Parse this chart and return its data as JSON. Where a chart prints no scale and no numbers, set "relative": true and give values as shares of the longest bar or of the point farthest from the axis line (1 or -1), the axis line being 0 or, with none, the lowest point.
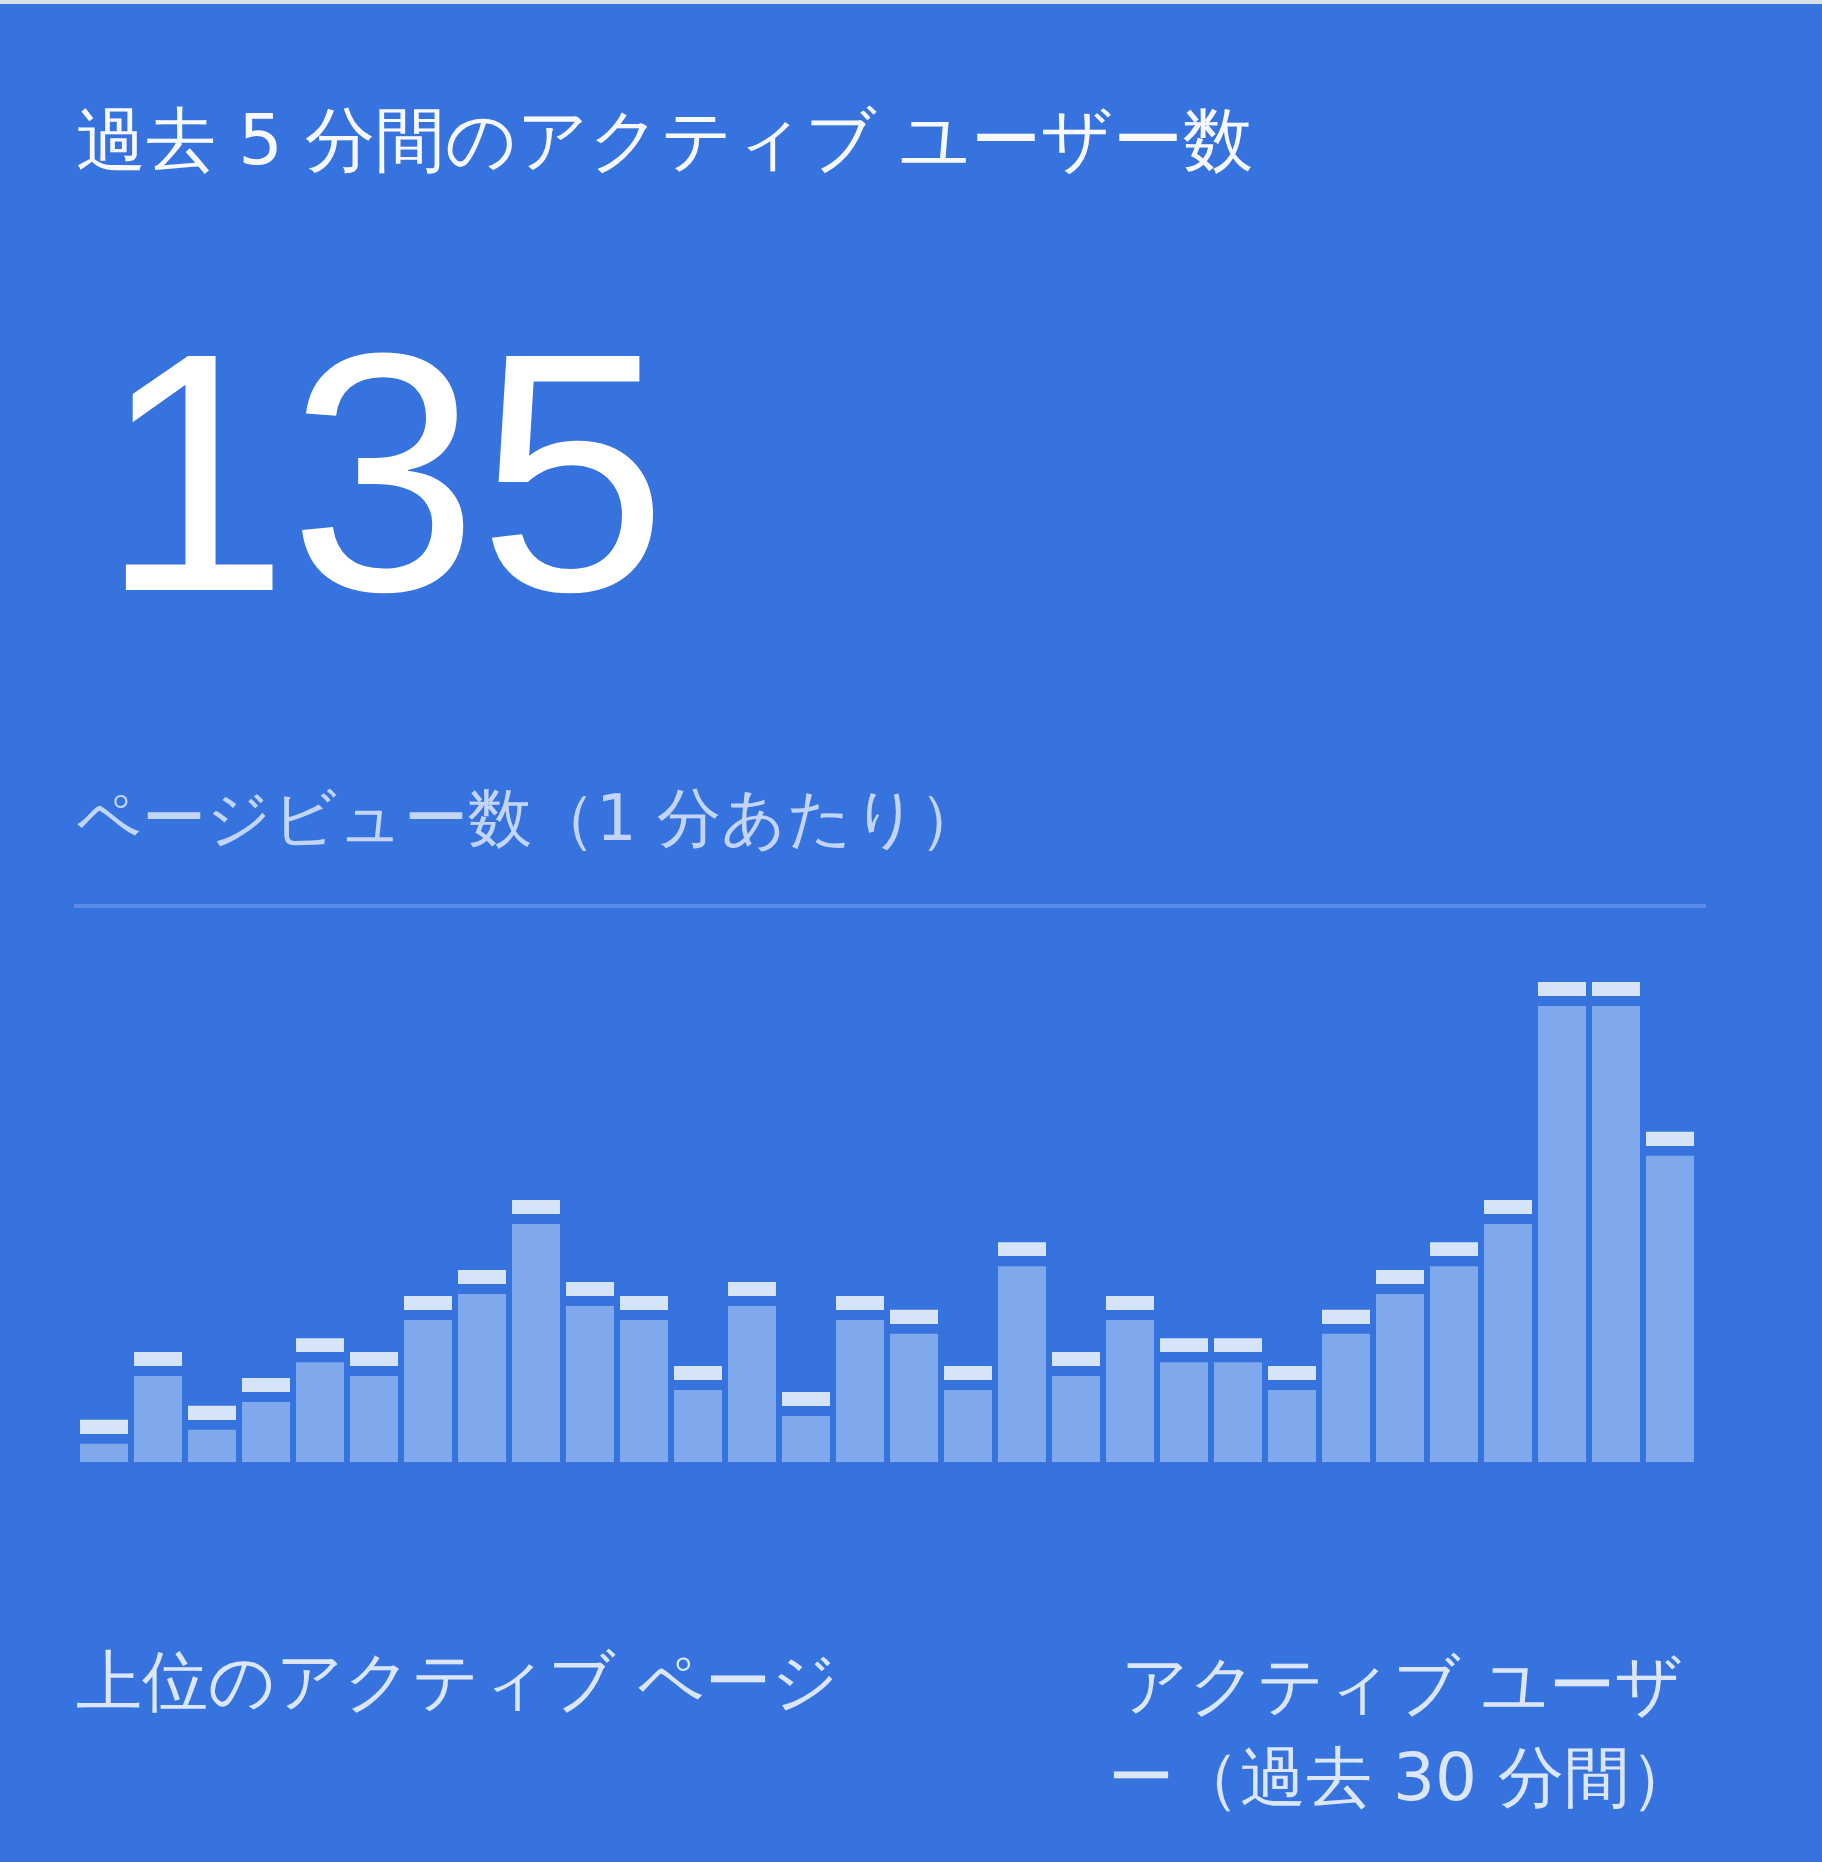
{
  "chart_data": {
    "type": "bar",
    "title": "過去 5 分間のアクティブ ユーザー数",
    "subtitle": "ページビュー数（1 分あたり）",
    "annotations": [
      "135",
      "上位のアクティブ ページ",
      "アクティブ ユーザー（過去 30 分間）"
    ],
    "relative": true,
    "stacked": true,
    "categories": [
      null,
      null,
      null,
      null,
      null,
      null,
      null,
      null,
      null,
      null,
      null,
      null,
      null,
      null,
      null,
      null,
      null,
      null,
      null,
      null,
      null,
      null,
      null,
      null,
      null,
      null,
      null,
      null,
      null,
      null
    ],
    "series": [
      {
        "color": "#80a8ec",
        "values": [
          0.038,
          0.179,
          0.067,
          0.125,
          0.208,
          0.179,
          0.296,
          0.35,
          0.496,
          0.325,
          0.296,
          0.15,
          0.325,
          0.096,
          0.296,
          0.267,
          0.15,
          0.408,
          0.179,
          0.296,
          0.208,
          0.208,
          0.15,
          0.267,
          0.35,
          0.408,
          0.496,
          0.95,
          0.95,
          0.638
        ]
      },
      {
        "color": "#d6e4f8",
        "values": [
          0.05,
          0.05,
          0.05,
          0.05,
          0.05,
          0.05,
          0.05,
          0.05,
          0.05,
          0.05,
          0.05,
          0.05,
          0.05,
          0.05,
          0.05,
          0.05,
          0.05,
          0.05,
          0.05,
          0.05,
          0.05,
          0.05,
          0.05,
          0.05,
          0.05,
          0.05,
          0.05,
          0.05,
          0.05,
          0.05
        ]
      }
    ]
  }
}
